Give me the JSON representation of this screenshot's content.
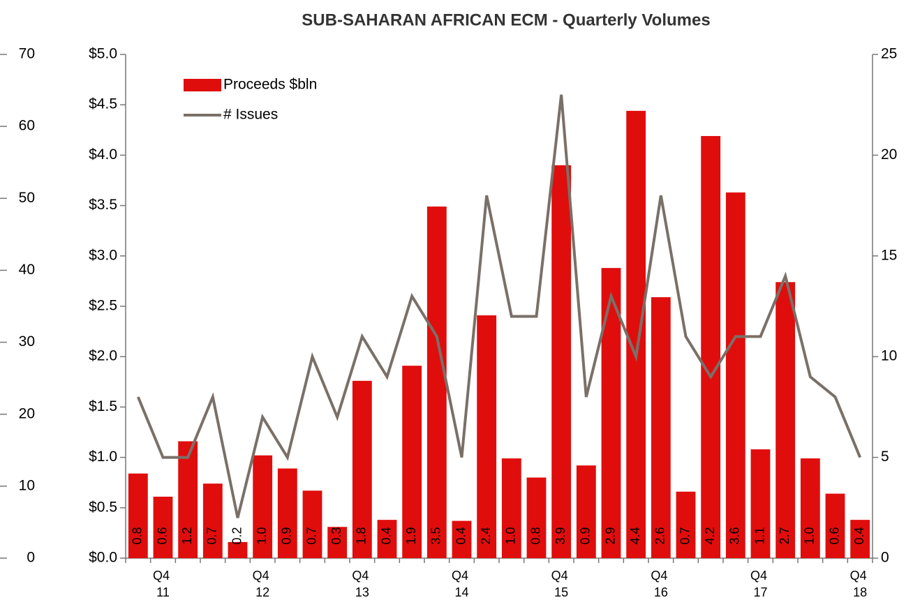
{
  "chart_data": {
    "type": "bar_line",
    "title": "SUB-SAHARAN AFRICAN ECM - Quarterly Volumes",
    "categories": [
      null,
      "Q4 11",
      null,
      null,
      null,
      "Q4 12",
      null,
      null,
      null,
      "Q4 13",
      null,
      null,
      null,
      "Q4 14",
      null,
      null,
      null,
      "Q4 15",
      null,
      null,
      null,
      "Q4 16",
      null,
      null,
      null,
      "Q4 17",
      null,
      null,
      null,
      "Q4 18"
    ],
    "series": [
      {
        "name": "Proceeds $bln",
        "type": "bar",
        "color": "#e00d0d",
        "values": [
          0.84,
          0.61,
          1.16,
          0.74,
          0.16,
          1.02,
          0.89,
          0.67,
          0.31,
          1.76,
          0.38,
          1.91,
          3.49,
          0.37,
          2.41,
          0.99,
          0.8,
          3.9,
          0.92,
          2.88,
          4.44,
          2.59,
          0.66,
          4.19,
          3.63,
          1.08,
          2.74,
          0.99,
          0.64,
          0.38
        ],
        "value_labels": [
          "0.8",
          "0.6",
          "1.2",
          "0.7",
          "0.2",
          "1.0",
          "0.9",
          "0.7",
          "0.3",
          "1.8",
          "0.4",
          "1.9",
          "3.5",
          "0.4",
          "2.4",
          "1.0",
          "0.8",
          "3.9",
          "0.9",
          "2.9",
          "4.4",
          "2.6",
          "0.7",
          "4.2",
          "3.6",
          "1.1",
          "2.7",
          "1.0",
          "0.6",
          "0.4"
        ]
      },
      {
        "name": "# Issues",
        "type": "line",
        "axis": "y2",
        "color": "#7a7068",
        "values": [
          8,
          5,
          5,
          8,
          2,
          7,
          5,
          10,
          7,
          11,
          9,
          13,
          11,
          5,
          18,
          12,
          12,
          23,
          8,
          13,
          10,
          18,
          11,
          9,
          11,
          11,
          14,
          9,
          8,
          5
        ]
      }
    ],
    "ylim": [
      0,
      5
    ],
    "yticks": [
      {
        "value": 0,
        "label": "$0.0"
      },
      {
        "value": 0.5,
        "label": "$0.5"
      },
      {
        "value": 1,
        "label": "$1.0"
      },
      {
        "value": 1.5,
        "label": "$1.5"
      },
      {
        "value": 2,
        "label": "$2.0"
      },
      {
        "value": 2.5,
        "label": "$2.5"
      },
      {
        "value": 3,
        "label": "$3.0"
      },
      {
        "value": 3.5,
        "label": "$3.5"
      },
      {
        "value": 4,
        "label": "$4.0"
      },
      {
        "value": 4.5,
        "label": "$4.5"
      },
      {
        "value": 5,
        "label": "$5.0"
      }
    ],
    "y2lim": [
      0,
      25
    ],
    "y2ticks": [
      0,
      5,
      10,
      15,
      20,
      25
    ],
    "y3lim": [
      0,
      70
    ],
    "y3ticks": [
      0,
      10,
      20,
      30,
      40,
      50,
      60,
      70
    ],
    "legend": "top-left"
  }
}
